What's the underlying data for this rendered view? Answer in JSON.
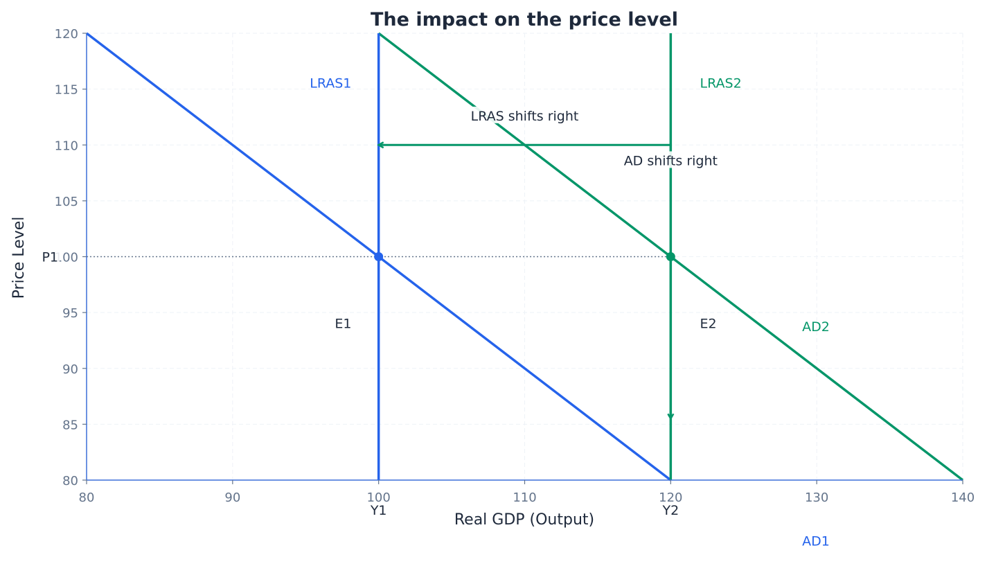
{
  "chart_data": {
    "type": "line",
    "title": "The impact on the price level",
    "xlabel": "Real GDP (Output)",
    "ylabel": "Price Level",
    "xlim": [
      80,
      140
    ],
    "ylim": [
      80,
      120
    ],
    "xticks": [
      80,
      90,
      100,
      110,
      120,
      130,
      140
    ],
    "yticks": [
      80,
      85,
      90,
      95,
      100,
      105,
      110,
      115,
      120
    ],
    "grid": true,
    "colors": {
      "blue": "#2563eb",
      "green": "#059669",
      "text": "#1e293b",
      "tick": "#64748b",
      "ref": "#64748b"
    },
    "series": [
      {
        "name": "AD1",
        "color": "#2563eb",
        "x": [
          80,
          120
        ],
        "y": [
          120,
          80
        ],
        "label_at": [
          129,
          74.5
        ]
      },
      {
        "name": "AD2",
        "color": "#059669",
        "x": [
          100,
          140
        ],
        "y": [
          120,
          80
        ],
        "label_at": [
          129,
          93.7
        ]
      },
      {
        "name": "LRAS1",
        "color": "#2563eb",
        "x": [
          100,
          100
        ],
        "y": [
          80,
          120
        ],
        "label_at": [
          97,
          115.5
        ]
      },
      {
        "name": "LRAS2",
        "color": "#059669",
        "x": [
          120,
          120
        ],
        "y": [
          80,
          120
        ],
        "label_at": [
          122,
          115.5
        ]
      }
    ],
    "equilibria": [
      {
        "name": "E1",
        "x": 100,
        "y": 100,
        "color": "#2563eb",
        "label_at": [
          97,
          94
        ]
      },
      {
        "name": "E2",
        "x": 120,
        "y": 100,
        "color": "#059669",
        "label_at": [
          122,
          94
        ]
      }
    ],
    "annotations": [
      {
        "text": "LRAS shifts right",
        "from": [
          120,
          110
        ],
        "to": [
          100,
          110
        ],
        "text_at": [
          110,
          112.5
        ]
      },
      {
        "text": "AD shifts right",
        "from": [
          120,
          110
        ],
        "to": [
          120,
          85.5
        ],
        "text_at": [
          120,
          108.5
        ]
      }
    ],
    "reference_labels": {
      "P1": 100,
      "Y1": 100,
      "Y2": 120
    }
  }
}
